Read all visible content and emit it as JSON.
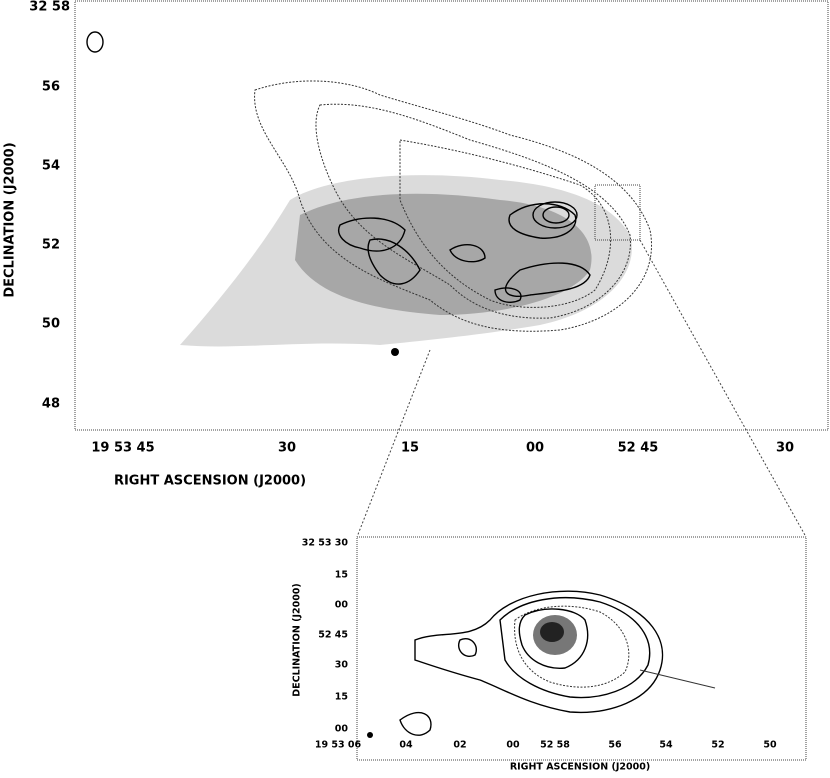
{
  "main_panel": {
    "x_label": "RIGHT ASCENSION (J2000)",
    "y_label": "DECLINATION (J2000)",
    "x_ticks": [
      "19 53 45",
      "30",
      "15",
      "00",
      "52 45",
      "30"
    ],
    "y_ticks": [
      "32 58",
      "56",
      "54",
      "52",
      "50",
      "48"
    ]
  },
  "inset_panel": {
    "x_label": "RIGHT ASCENSION (J2000)",
    "y_label": "DECLINATION (J2000)",
    "x_ticks": [
      "19 53 06",
      "04",
      "02",
      "00",
      "52 58",
      "56",
      "54",
      "52",
      "50"
    ],
    "y_ticks": [
      "32 53 30",
      "15",
      "00",
      "52 45",
      "30",
      "15",
      "00"
    ]
  }
}
